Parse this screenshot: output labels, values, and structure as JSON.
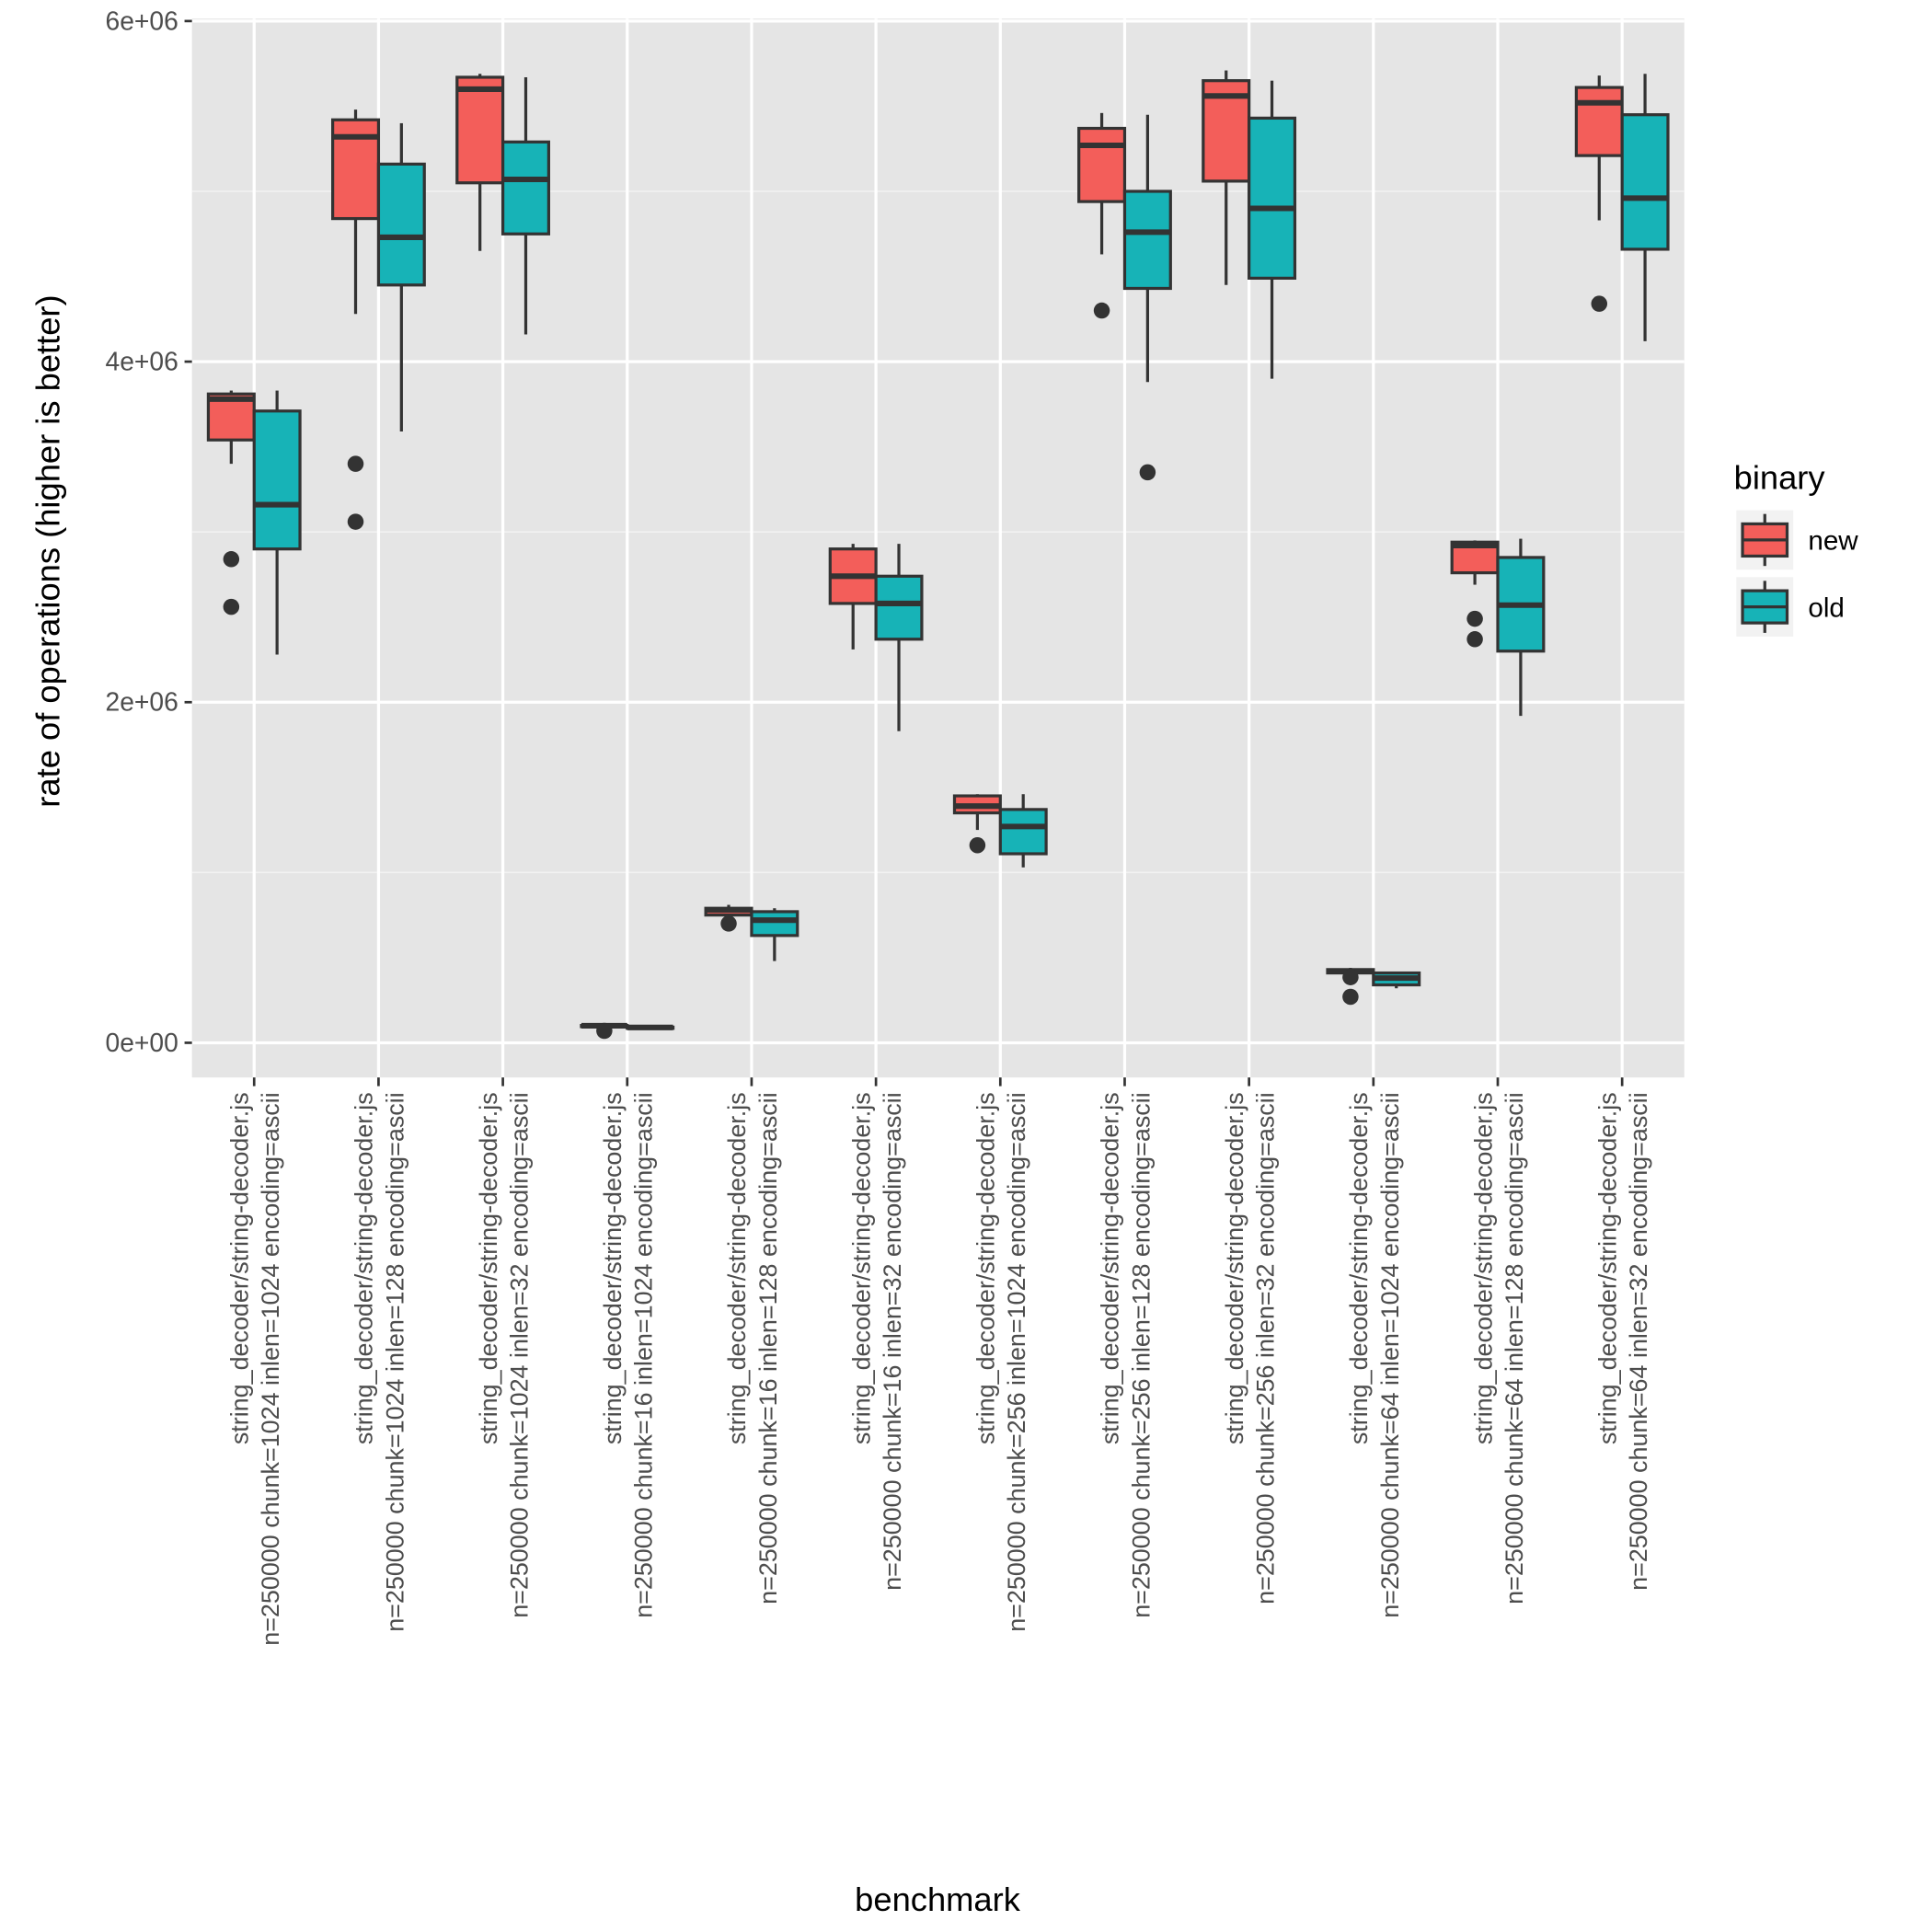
{
  "chart_data": {
    "type": "box",
    "xlabel": "benchmark",
    "ylabel": "rate of operations (higher is better)",
    "ylim": [
      -200000,
      6000000
    ],
    "yticks": [
      0,
      2000000,
      4000000,
      6000000
    ],
    "ytick_labels": [
      "0e+00",
      "2e+06",
      "4e+06",
      "6e+06"
    ],
    "grid": true,
    "legend": {
      "title": "binary",
      "placement": "right",
      "entries": [
        "new",
        "old"
      ]
    },
    "colors": {
      "new": "#F35E5A",
      "old": "#17B3B7"
    },
    "categories": [
      [
        "string_decoder/string-decoder.js",
        "n=250000 chunk=1024 inlen=1024 encoding=ascii"
      ],
      [
        "string_decoder/string-decoder.js",
        "n=250000 chunk=1024 inlen=128 encoding=ascii"
      ],
      [
        "string_decoder/string-decoder.js",
        "n=250000 chunk=1024 inlen=32 encoding=ascii"
      ],
      [
        "string_decoder/string-decoder.js",
        "n=250000 chunk=16 inlen=1024 encoding=ascii"
      ],
      [
        "string_decoder/string-decoder.js",
        "n=250000 chunk=16 inlen=128 encoding=ascii"
      ],
      [
        "string_decoder/string-decoder.js",
        "n=250000 chunk=16 inlen=32 encoding=ascii"
      ],
      [
        "string_decoder/string-decoder.js",
        "n=250000 chunk=256 inlen=1024 encoding=ascii"
      ],
      [
        "string_decoder/string-decoder.js",
        "n=250000 chunk=256 inlen=128 encoding=ascii"
      ],
      [
        "string_decoder/string-decoder.js",
        "n=250000 chunk=256 inlen=32 encoding=ascii"
      ],
      [
        "string_decoder/string-decoder.js",
        "n=250000 chunk=64 inlen=1024 encoding=ascii"
      ],
      [
        "string_decoder/string-decoder.js",
        "n=250000 chunk=64 inlen=128 encoding=ascii"
      ],
      [
        "string_decoder/string-decoder.js",
        "n=250000 chunk=64 inlen=32 encoding=ascii"
      ]
    ],
    "series": [
      {
        "name": "new",
        "boxes": [
          {
            "min": 3400000,
            "q1": 3540000,
            "median": 3780000,
            "q3": 3810000,
            "max": 3830000,
            "outliers": [
              2840000,
              2560000
            ]
          },
          {
            "min": 4280000,
            "q1": 4840000,
            "median": 5320000,
            "q3": 5420000,
            "max": 5480000,
            "outliers": [
              3400000,
              3060000
            ]
          },
          {
            "min": 4650000,
            "q1": 5050000,
            "median": 5600000,
            "q3": 5670000,
            "max": 5690000,
            "outliers": []
          },
          {
            "min": 95000,
            "q1": 98000,
            "median": 100000,
            "q3": 102000,
            "max": 104000,
            "outliers": [
              70000
            ]
          },
          {
            "min": 730000,
            "q1": 750000,
            "median": 780000,
            "q3": 790000,
            "max": 810000,
            "outliers": [
              700000
            ]
          },
          {
            "min": 2310000,
            "q1": 2580000,
            "median": 2740000,
            "q3": 2900000,
            "max": 2930000,
            "outliers": []
          },
          {
            "min": 1250000,
            "q1": 1350000,
            "median": 1390000,
            "q3": 1450000,
            "max": 1460000,
            "outliers": [
              1160000
            ]
          },
          {
            "min": 4630000,
            "q1": 4940000,
            "median": 5270000,
            "q3": 5370000,
            "max": 5460000,
            "outliers": [
              4300000
            ]
          },
          {
            "min": 4450000,
            "q1": 5060000,
            "median": 5560000,
            "q3": 5650000,
            "max": 5710000,
            "outliers": []
          },
          {
            "min": 390000,
            "q1": 410000,
            "median": 420000,
            "q3": 430000,
            "max": 440000,
            "outliers": [
              385000,
              270000
            ]
          },
          {
            "min": 2690000,
            "q1": 2760000,
            "median": 2920000,
            "q3": 2940000,
            "max": 2950000,
            "outliers": [
              2490000,
              2370000
            ]
          },
          {
            "min": 4830000,
            "q1": 5210000,
            "median": 5520000,
            "q3": 5610000,
            "max": 5680000,
            "outliers": [
              4340000
            ]
          }
        ]
      },
      {
        "name": "old",
        "boxes": [
          {
            "min": 2280000,
            "q1": 2900000,
            "median": 3160000,
            "q3": 3710000,
            "max": 3830000,
            "outliers": []
          },
          {
            "min": 3590000,
            "q1": 4450000,
            "median": 4730000,
            "q3": 5160000,
            "max": 5400000,
            "outliers": []
          },
          {
            "min": 4160000,
            "q1": 4750000,
            "median": 5070000,
            "q3": 5290000,
            "max": 5670000,
            "outliers": []
          },
          {
            "min": 85000,
            "q1": 88000,
            "median": 90000,
            "q3": 92000,
            "max": 95000,
            "outliers": []
          },
          {
            "min": 480000,
            "q1": 630000,
            "median": 720000,
            "q3": 770000,
            "max": 790000,
            "outliers": []
          },
          {
            "min": 1830000,
            "q1": 2370000,
            "median": 2580000,
            "q3": 2740000,
            "max": 2930000,
            "outliers": []
          },
          {
            "min": 1030000,
            "q1": 1110000,
            "median": 1270000,
            "q3": 1370000,
            "max": 1460000,
            "outliers": []
          },
          {
            "min": 3880000,
            "q1": 4430000,
            "median": 4760000,
            "q3": 5000000,
            "max": 5450000,
            "outliers": [
              3350000
            ]
          },
          {
            "min": 3900000,
            "q1": 4490000,
            "median": 4900000,
            "q3": 5430000,
            "max": 5650000,
            "outliers": []
          },
          {
            "min": 320000,
            "q1": 340000,
            "median": 380000,
            "q3": 410000,
            "max": 415000,
            "outliers": []
          },
          {
            "min": 1920000,
            "q1": 2300000,
            "median": 2570000,
            "q3": 2850000,
            "max": 2960000,
            "outliers": []
          },
          {
            "min": 4120000,
            "q1": 4660000,
            "median": 4960000,
            "q3": 5450000,
            "max": 5690000,
            "outliers": []
          }
        ]
      }
    ]
  }
}
